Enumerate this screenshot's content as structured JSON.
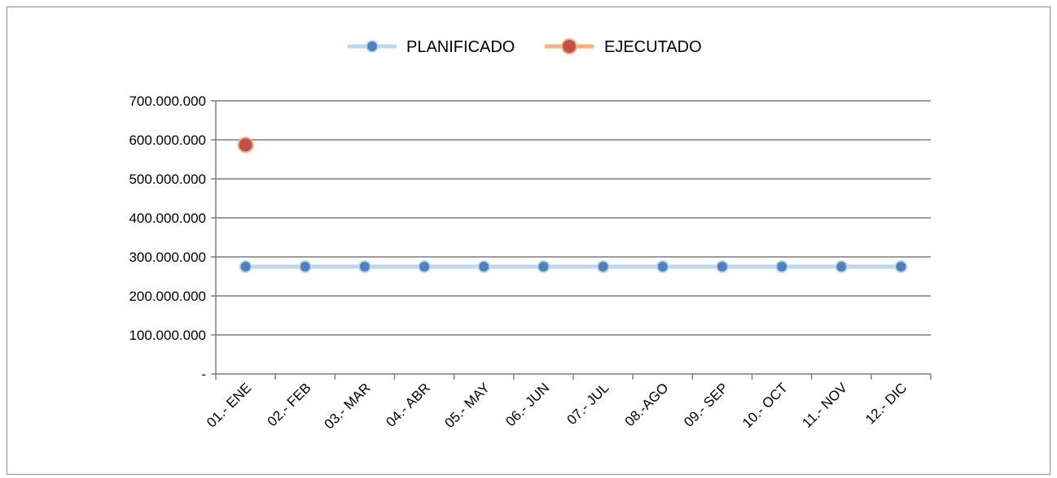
{
  "colors": {
    "planned_line": "#bdd7ee",
    "planned_marker": "#4f81bd",
    "executed_line": "#f4b183",
    "executed_marker": "#c0504d",
    "gridline": "#7f7f7f",
    "text": "#000000"
  },
  "chart_data": {
    "type": "line",
    "categories": [
      "01.- ENE",
      "02.- FEB",
      "03.- MAR",
      "04.- ABR",
      "05.- MAY",
      "06.- JUN",
      "07.- JUL",
      "08.-AGO",
      "09.- SEP",
      "10.- OCT",
      "11.- NOV",
      "12.- DIC"
    ],
    "series": [
      {
        "name": "PLANIFICADO",
        "values": [
          275000000,
          275000000,
          275000000,
          275000000,
          275000000,
          275000000,
          275000000,
          275000000,
          275000000,
          275000000,
          275000000,
          275000000
        ]
      },
      {
        "name": "EJECUTADO",
        "values": [
          587000000,
          null,
          null,
          null,
          null,
          null,
          null,
          null,
          null,
          null,
          null,
          null
        ]
      }
    ],
    "y_ticks": [
      0,
      100000000,
      200000000,
      300000000,
      400000000,
      500000000,
      600000000,
      700000000
    ],
    "y_tick_labels": [
      "-",
      "100.000.000",
      "200.000.000",
      "300.000.000",
      "400.000.000",
      "500.000.000",
      "600.000.000",
      "700.000.000"
    ],
    "ylim": [
      0,
      700000000
    ],
    "grid": true,
    "legend_position": "top"
  }
}
